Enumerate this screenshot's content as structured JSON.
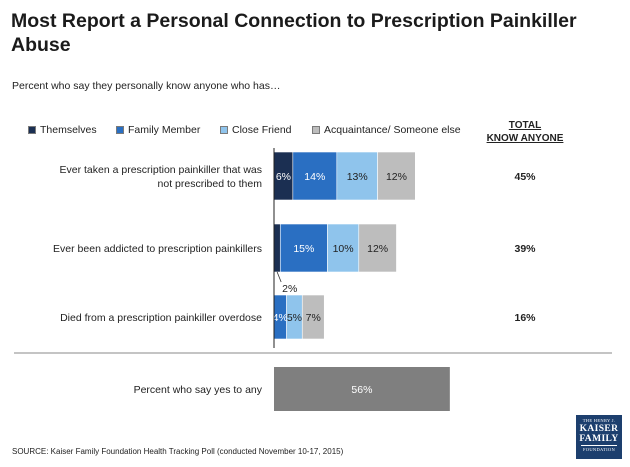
{
  "title": "Most Report a Personal Connection to Prescription Painkiller Abuse",
  "subtitle": "Percent who say they personally know anyone who has…",
  "total_header_line1": "TOTAL",
  "total_header_line2": "KNOW ANYONE",
  "source": "SOURCE: Kaiser Family Foundation Health Tracking Poll (conducted November 10-17, 2015)",
  "logo": {
    "line1": "THE HENRY J.",
    "line2": "KAISER",
    "line3": "FAMILY",
    "line4": "FOUNDATION"
  },
  "colors": {
    "themselves": "#1b2f52",
    "family_member": "#2a6fc2",
    "close_friend": "#8fc4ec",
    "acquaintance": "#bdbdbd",
    "any": "#7f7f7f",
    "axis": "#222222",
    "divider": "#888888"
  },
  "legend": [
    {
      "label": "Themselves",
      "color": "#1b2f52"
    },
    {
      "label": "Family Member",
      "color": "#2a6fc2"
    },
    {
      "label": "Close Friend",
      "color": "#8fc4ec"
    },
    {
      "label": "Acquaintance/ Someone else",
      "color": "#bdbdbd"
    }
  ],
  "chart_data": [
    {
      "type": "bar",
      "orientation": "horizontal",
      "stacked": true,
      "categories": [
        "Ever taken a prescription painkiller that was not prescribed to them",
        "Ever been addicted to prescription painkillers",
        "Died from a prescription painkiller overdose"
      ],
      "series": [
        {
          "name": "Themselves",
          "values": [
            6,
            2,
            0
          ],
          "labels": [
            "6%",
            "2%",
            ""
          ]
        },
        {
          "name": "Family Member",
          "values": [
            14,
            15,
            4
          ],
          "labels": [
            "14%",
            "15%",
            "4%"
          ]
        },
        {
          "name": "Close Friend",
          "values": [
            13,
            10,
            5
          ],
          "labels": [
            "13%",
            "10%",
            "5%"
          ]
        },
        {
          "name": "Acquaintance/ Someone else",
          "values": [
            12,
            12,
            7
          ],
          "labels": [
            "12%",
            "12%",
            "7%"
          ]
        }
      ],
      "totals": [
        "45%",
        "39%",
        "16%"
      ],
      "legend_position": "top",
      "grid": false
    },
    {
      "type": "bar",
      "orientation": "horizontal",
      "categories": [
        "Percent who say yes to any"
      ],
      "values": [
        56
      ],
      "labels": [
        "56%"
      ]
    }
  ]
}
